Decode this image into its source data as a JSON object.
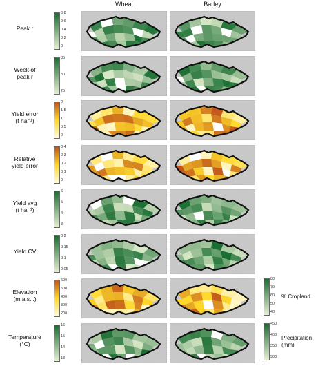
{
  "columns": [
    "Wheat",
    "Barley"
  ],
  "rows": [
    {
      "label": "Peak r",
      "ticks": [
        "0.8",
        "0.6",
        "0.4",
        "0.2",
        "0"
      ],
      "palette": "green"
    },
    {
      "label": "Week of\npeak r",
      "ticks": [
        "35",
        "30",
        "25"
      ],
      "palette": "green"
    },
    {
      "label": "Yield error\n(t ha⁻¹)",
      "ticks": [
        "2",
        "1.5",
        "1",
        "0.5",
        "0"
      ],
      "palette": "warm"
    },
    {
      "label": "Relative\nyield error",
      "ticks": [
        "0.4",
        "0.3",
        "0.2",
        "0.1",
        "0"
      ],
      "palette": "warm"
    },
    {
      "label": "Yield avg\n(t ha⁻¹)",
      "ticks": [
        "6",
        "5",
        "4",
        "3"
      ],
      "palette": "green"
    },
    {
      "label": "Yield CV",
      "ticks": [
        "0.2",
        "0.15",
        "0.1",
        "0.05"
      ],
      "palette": "green"
    },
    {
      "label": "Elevation\n(m a.s.l.)",
      "ticks": [
        "600",
        "500",
        "400",
        "300",
        "200"
      ],
      "palette": "warm"
    },
    {
      "label": "Temperature\n(°C)",
      "ticks": [
        "16",
        "15",
        "14",
        "13"
      ],
      "palette": "green"
    }
  ],
  "right_colorbars": [
    {
      "label": "% Cropland",
      "ticks": [
        "80",
        "70",
        "60",
        "50",
        "40"
      ]
    },
    {
      "label": "Precipitation\n(mm)",
      "ticks": [
        "450",
        "400",
        "350",
        "300"
      ]
    }
  ],
  "colors": {
    "panel_bg": "#c8c8c8",
    "border": "#111111",
    "green_dark": "#1a6e32",
    "green_light": "#e6f0d2",
    "warm_dark": "#c0541a",
    "warm_light": "#fff6b0"
  }
}
